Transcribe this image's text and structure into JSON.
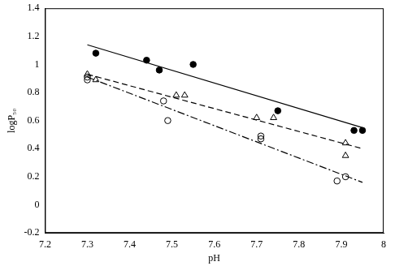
{
  "chart_data": {
    "type": "scatter",
    "x_label": "pH",
    "y_label": "logP₅₀",
    "xlim": [
      7.2,
      8
    ],
    "xticks": [
      7.2,
      7.3,
      7.4,
      7.5,
      7.6,
      7.7,
      7.8,
      7.9,
      8
    ],
    "ylim": [
      -0.2,
      1.4
    ],
    "yticks": [
      -0.2,
      0,
      0.2,
      0.4,
      0.6,
      0.8,
      1,
      1.2,
      1.4
    ],
    "grid": false,
    "series": [
      {
        "type": "scatter",
        "marker": "circle",
        "color": "#000000",
        "x": [
          7.32,
          7.44,
          7.47,
          7.55,
          7.75,
          7.93,
          7.95
        ],
        "values": [
          1.08,
          1.03,
          0.96,
          1.0,
          0.67,
          0.53,
          0.53
        ]
      },
      {
        "type": "scatter",
        "marker": "triangle_open",
        "color": "#000000",
        "x": [
          7.3,
          7.32,
          7.51,
          7.53,
          7.7,
          7.74,
          7.91,
          7.91
        ],
        "values": [
          0.93,
          0.89,
          0.78,
          0.78,
          0.62,
          0.62,
          0.44,
          0.35
        ]
      },
      {
        "type": "scatter",
        "marker": "circle_open",
        "color": "#000000",
        "x": [
          7.3,
          7.3,
          7.48,
          7.49,
          7.71,
          7.71,
          7.89,
          7.91
        ],
        "values": [
          0.89,
          0.91,
          0.74,
          0.6,
          0.49,
          0.47,
          0.17,
          0.2
        ]
      },
      {
        "type": "line",
        "line_style": "solid",
        "color": "#000000",
        "x": [
          7.3,
          7.95
        ],
        "values": [
          1.14,
          0.55
        ]
      },
      {
        "type": "line",
        "line_style": "dashed",
        "color": "#000000",
        "x": [
          7.3,
          7.95
        ],
        "values": [
          0.93,
          0.4
        ]
      },
      {
        "type": "line",
        "line_style": "dashdot",
        "color": "#000000",
        "x": [
          7.3,
          7.95
        ],
        "values": [
          0.91,
          0.16
        ]
      }
    ]
  }
}
